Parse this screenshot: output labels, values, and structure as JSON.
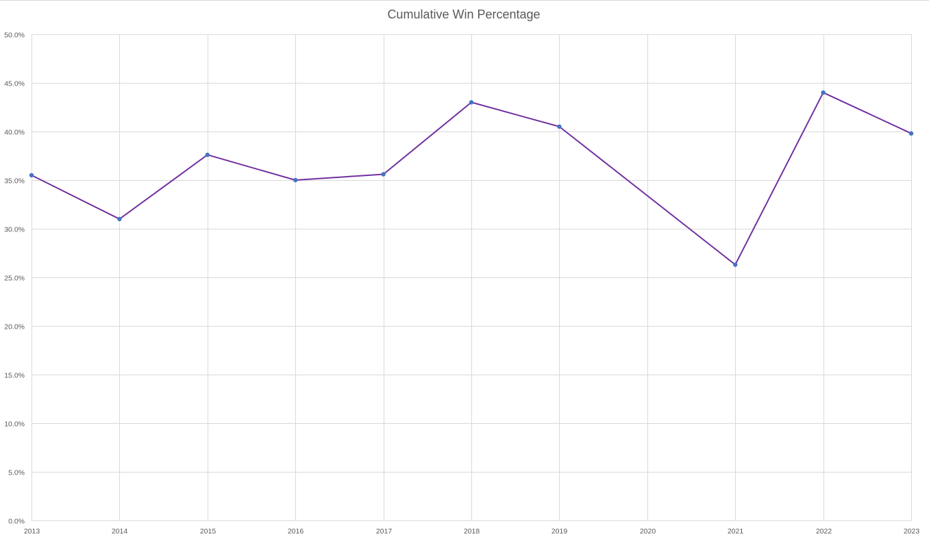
{
  "chart_data": {
    "type": "line",
    "title": "Cumulative Win Percentage",
    "xlabel": "",
    "ylabel": "",
    "x": [
      "2013",
      "2014",
      "2015",
      "2016",
      "2017",
      "2018",
      "2019",
      "2020",
      "2021",
      "2022",
      "2023"
    ],
    "series": [
      {
        "values": [
          0.355,
          0.31,
          0.376,
          0.35,
          0.356,
          0.43,
          0.405,
          null,
          0.263,
          0.44,
          0.398
        ],
        "line_color": "#7030a0",
        "marker_color": "#4472c4"
      }
    ],
    "connect_gaps": true,
    "ylim": [
      0,
      0.5
    ],
    "y_ticks": [
      0,
      0.05,
      0.1,
      0.15,
      0.2,
      0.25,
      0.3,
      0.35,
      0.4,
      0.45,
      0.5
    ],
    "y_tick_labels": [
      "0.0%",
      "5.0%",
      "10.0%",
      "15.0%",
      "20.0%",
      "25.0%",
      "30.0%",
      "35.0%",
      "40.0%",
      "45.0%",
      "50.0%"
    ],
    "grid": true,
    "legend": "none",
    "grid_color": "#d9d9d9"
  }
}
